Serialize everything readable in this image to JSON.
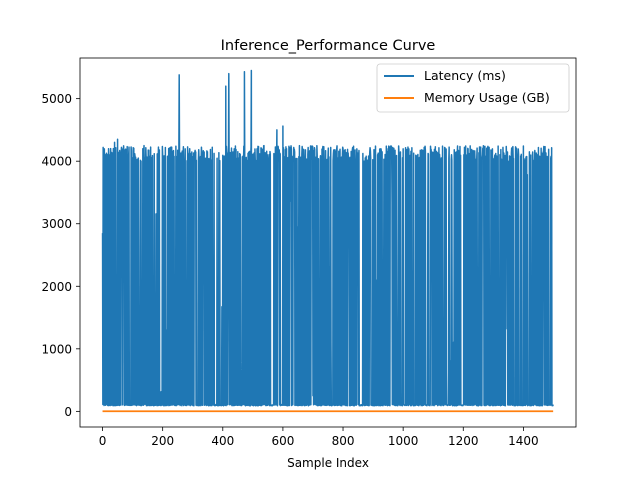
{
  "chart_data": {
    "type": "line",
    "title": "Inference_Performance Curve",
    "xlabel": "Sample Index",
    "ylabel": "",
    "xlim": [
      -75,
      1575
    ],
    "ylim": [
      -250,
      5650
    ],
    "xticks": [
      0,
      200,
      400,
      600,
      800,
      1000,
      1200,
      1400
    ],
    "yticks": [
      0,
      1000,
      2000,
      3000,
      4000,
      5000
    ],
    "grid": false,
    "legend_position": "top-right",
    "series": [
      {
        "name": "Latency (ms)",
        "color": "#1f77b4",
        "n_points": 1500,
        "baseline_ms": 90,
        "typical_peak_ms": 4150,
        "peaks": [
          {
            "x": 0,
            "y": 2850
          },
          {
            "x": 3,
            "y": 3350
          },
          {
            "x": 8,
            "y": 2350
          },
          {
            "x": 20,
            "y": 4200
          },
          {
            "x": 40,
            "y": 4300
          },
          {
            "x": 50,
            "y": 4350
          },
          {
            "x": 255,
            "y": 5380
          },
          {
            "x": 410,
            "y": 5200
          },
          {
            "x": 420,
            "y": 5400
          },
          {
            "x": 472,
            "y": 5430
          },
          {
            "x": 495,
            "y": 5450
          },
          {
            "x": 600,
            "y": 4560
          },
          {
            "x": 580,
            "y": 4500
          }
        ],
        "dips": [
          {
            "x": 120,
            "y": 2650
          },
          {
            "x": 240,
            "y": 1200
          },
          {
            "x": 340,
            "y": 250
          },
          {
            "x": 455,
            "y": 1000
          },
          {
            "x": 700,
            "y": 250
          },
          {
            "x": 760,
            "y": 1100
          },
          {
            "x": 820,
            "y": 1850
          },
          {
            "x": 935,
            "y": 1000
          },
          {
            "x": 1045,
            "y": 800
          },
          {
            "x": 1110,
            "y": 1200
          },
          {
            "x": 1240,
            "y": 1050
          },
          {
            "x": 1300,
            "y": 2100
          },
          {
            "x": 1330,
            "y": 1300
          },
          {
            "x": 1470,
            "y": 2950
          }
        ]
      },
      {
        "name": "Memory Usage (GB)",
        "color": "#ff7f0e",
        "n_points": 1500,
        "value": 2
      }
    ]
  }
}
